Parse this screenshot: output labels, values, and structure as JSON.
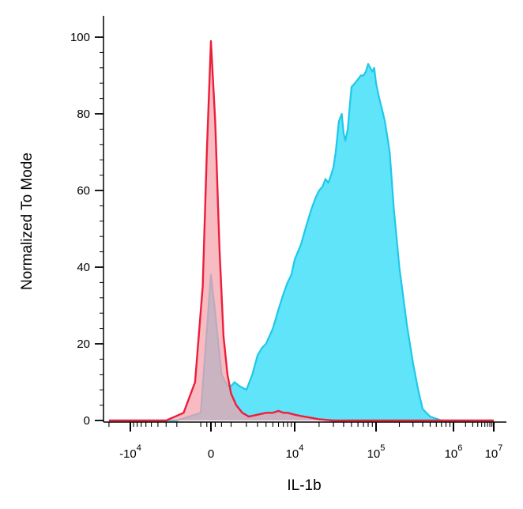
{
  "chart_data": {
    "type": "area",
    "xlabel": "IL-1b",
    "ylabel": "Normalized To Mode",
    "ylim": [
      0,
      100
    ],
    "y_ticks": [
      "0",
      "20",
      "40",
      "60",
      "80",
      "100"
    ],
    "x_scale": "biexponential",
    "x_ticks": [
      {
        "base": "-10",
        "exp": "4",
        "value": -10000
      },
      {
        "base": "0",
        "exp": "",
        "value": 0
      },
      {
        "base": "10",
        "exp": "4",
        "value": 10000
      },
      {
        "base": "10",
        "exp": "5",
        "value": 100000
      },
      {
        "base": "10",
        "exp": "6",
        "value": 1000000
      },
      {
        "base": "10",
        "exp": "7",
        "value": 10000000
      }
    ],
    "grid": false,
    "legend": "none",
    "series": [
      {
        "fill": "#5fe4fa",
        "stroke": "#1fc8ea",
        "x": [
          -20000,
          -2000,
          -500,
          0,
          200,
          500,
          800,
          1000,
          1200,
          1500,
          2000,
          2500,
          3000,
          3500,
          4000,
          5000,
          6000,
          7000,
          8000,
          9000,
          10000,
          12000,
          14000,
          16000,
          18000,
          20000,
          22000,
          24000,
          26000,
          28000,
          30000,
          32000,
          35000,
          38000,
          40000,
          42000,
          45000,
          48000,
          50000,
          55000,
          60000,
          65000,
          70000,
          75000,
          80000,
          85000,
          90000,
          95000,
          100000,
          110000,
          120000,
          130000,
          140000,
          150000,
          170000,
          200000,
          250000,
          300000,
          350000,
          400000,
          500000,
          700000,
          1000000,
          10000000
        ],
        "y": [
          0,
          0,
          2,
          38,
          28,
          12,
          9,
          9,
          10,
          9,
          8,
          12,
          17,
          19,
          20,
          24,
          29,
          33,
          36,
          38,
          42,
          46,
          51,
          55,
          58,
          60,
          61,
          63,
          62,
          64,
          66,
          70,
          78,
          80,
          75,
          73,
          76,
          83,
          87,
          88,
          89,
          90,
          90,
          91,
          93,
          92,
          91,
          92,
          88,
          84,
          81,
          78,
          74,
          70,
          55,
          40,
          25,
          15,
          8,
          3,
          1,
          0,
          0,
          0
        ]
      },
      {
        "fill": "#f5a1ab",
        "stroke": "#ec1f3b",
        "x": [
          -20000,
          -3000,
          -1500,
          -800,
          -400,
          -200,
          0,
          200,
          400,
          600,
          800,
          1000,
          1300,
          1700,
          2200,
          3000,
          4000,
          5000,
          6000,
          7000,
          8000,
          10000,
          13000,
          16000,
          20000,
          30000,
          10000000
        ],
        "y": [
          0,
          0,
          2,
          10,
          35,
          70,
          99,
          78,
          45,
          22,
          12,
          7,
          4,
          2,
          1,
          1.5,
          2,
          2,
          2.5,
          2,
          2,
          1.5,
          1,
          0.7,
          0.3,
          0,
          0
        ]
      }
    ]
  }
}
